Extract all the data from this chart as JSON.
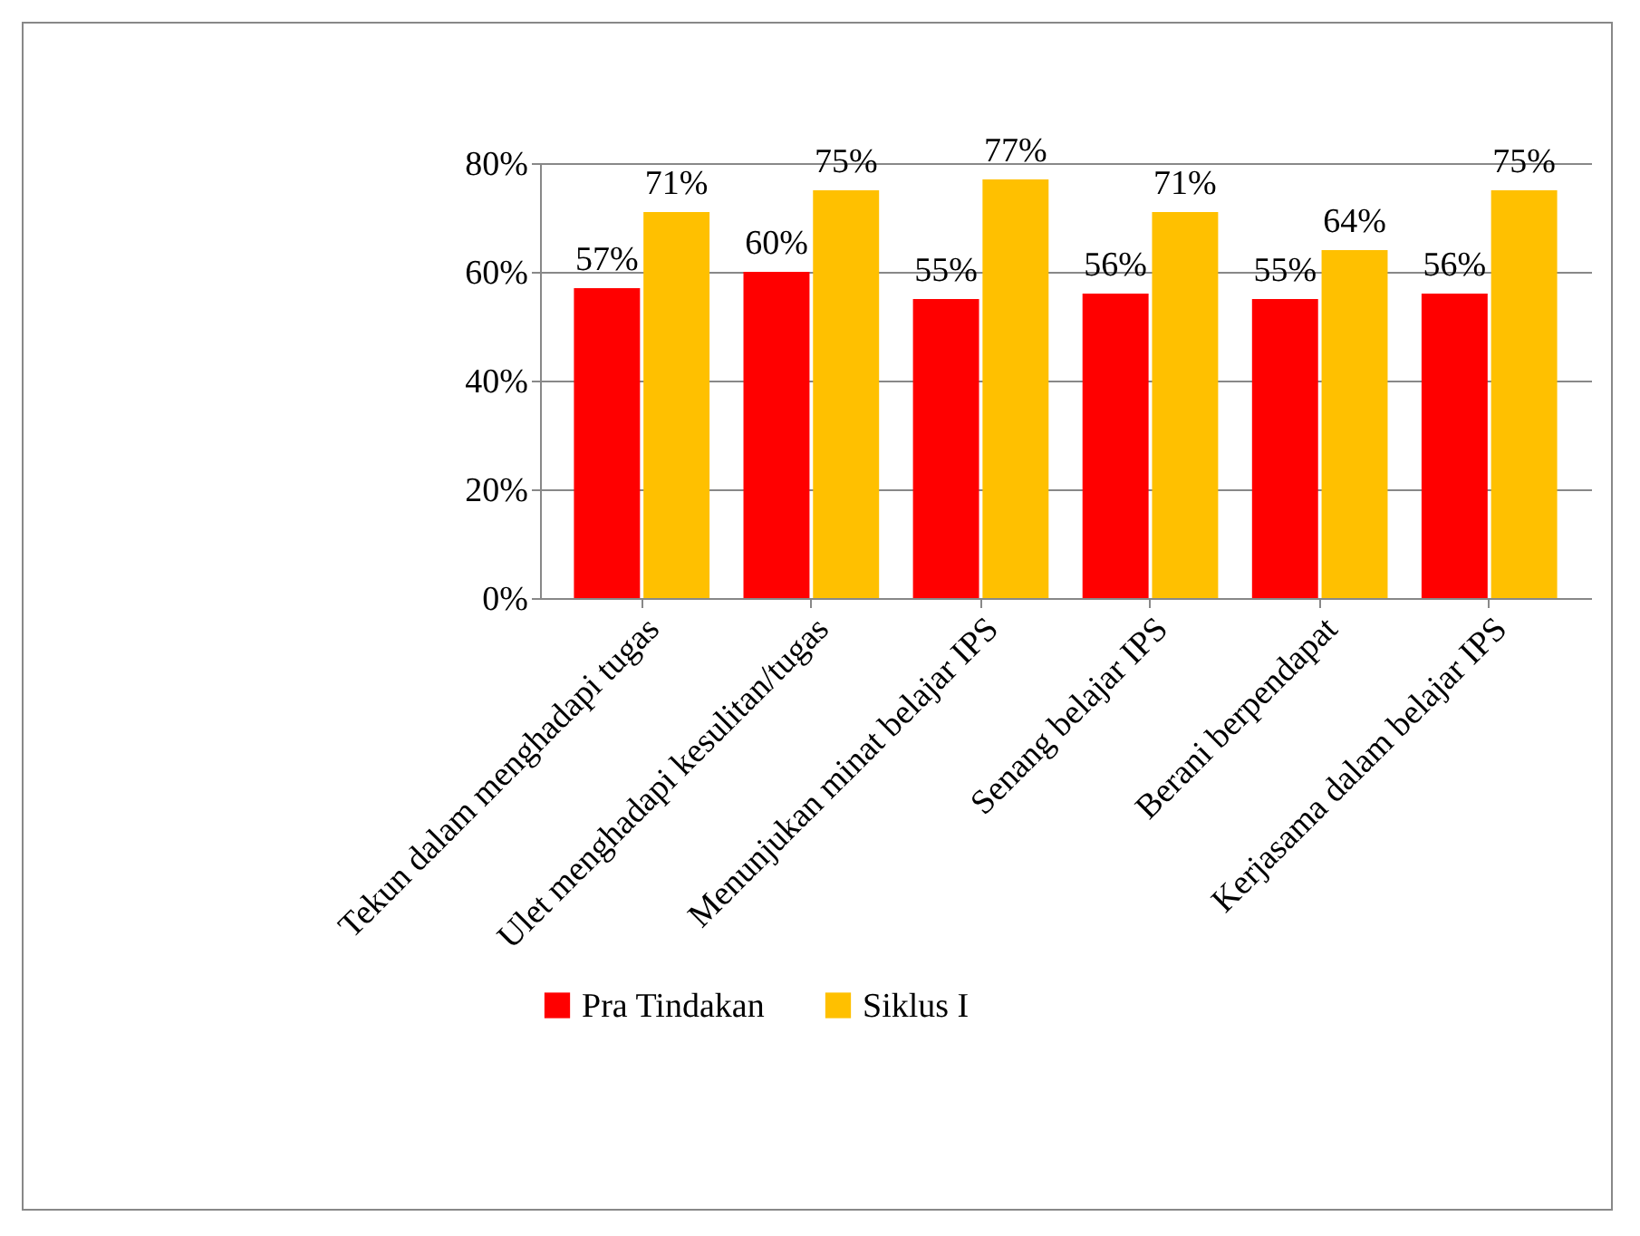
{
  "chart_data": {
    "type": "bar",
    "categories": [
      "Tekun dalam menghadapi tugas",
      "Ulet menghadapi kesulitan/tugas",
      "Menunjukan minat belajar IPS",
      "Senang belajar IPS",
      "Berani berpendapat",
      "Kerjasama dalam belajar IPS"
    ],
    "series": [
      {
        "name": "Pra Tindakan",
        "color": "#ff0000",
        "values": [
          57,
          60,
          55,
          56,
          55,
          56
        ],
        "value_labels": [
          "57%",
          "60%",
          "55%",
          "56%",
          "55%",
          "56%"
        ]
      },
      {
        "name": "Siklus I",
        "color": "#ffc000",
        "values": [
          71,
          75,
          77,
          71,
          64,
          75
        ],
        "value_labels": [
          "71%",
          "75%",
          "77%",
          "71%",
          "64%",
          "75%"
        ]
      }
    ],
    "ylim": [
      0,
      80
    ],
    "yticks": [
      {
        "value": 0,
        "label": "0%"
      },
      {
        "value": 20,
        "label": "20%"
      },
      {
        "value": 40,
        "label": "40%"
      },
      {
        "value": 60,
        "label": "60%"
      },
      {
        "value": 80,
        "label": "80%"
      }
    ],
    "grid": "y",
    "legend": "bottom"
  }
}
